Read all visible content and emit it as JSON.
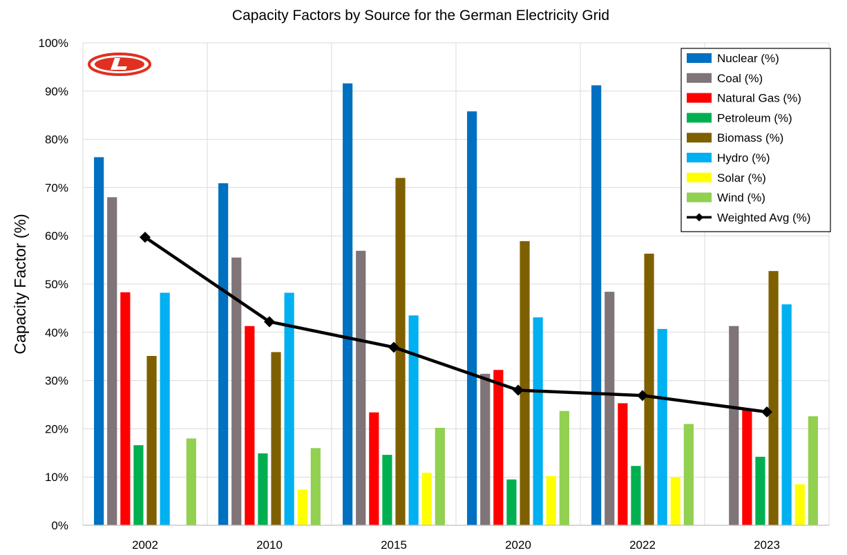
{
  "chart_data": {
    "type": "bar",
    "title": "Capacity Factors by Source for the German Electricity Grid",
    "xlabel": "",
    "ylabel": "Capacity Factor (%)",
    "ylim": [
      0,
      100
    ],
    "y_ticks": [
      "0%",
      "10%",
      "20%",
      "30%",
      "40%",
      "50%",
      "60%",
      "70%",
      "80%",
      "90%",
      "100%"
    ],
    "grid": "horizontal and vertical",
    "legend_position": "top-right",
    "categories": [
      "2002",
      "2010",
      "2015",
      "2020",
      "2022",
      "2023"
    ],
    "series": [
      {
        "name": "Nuclear (%)",
        "color": "#0070C0",
        "values": [
          76.3,
          70.9,
          91.6,
          85.8,
          91.2,
          null
        ]
      },
      {
        "name": "Coal (%)",
        "color": "#7F7478",
        "values": [
          68.0,
          55.5,
          56.9,
          31.4,
          48.4,
          41.3
        ]
      },
      {
        "name": "Natural Gas (%)",
        "color": "#FF0000",
        "values": [
          48.3,
          41.3,
          23.4,
          32.2,
          25.3,
          23.9
        ]
      },
      {
        "name": "Petroleum (%)",
        "color": "#00B050",
        "values": [
          16.6,
          14.9,
          14.6,
          9.5,
          12.3,
          14.2
        ]
      },
      {
        "name": "Biomass (%)",
        "color": "#7F6000",
        "values": [
          35.1,
          35.9,
          72.0,
          58.9,
          56.3,
          52.7
        ]
      },
      {
        "name": "Hydro (%)",
        "color": "#00B0F0",
        "values": [
          48.2,
          48.2,
          43.5,
          43.1,
          40.7,
          45.8
        ]
      },
      {
        "name": "Solar (%)",
        "color": "#FFFF00",
        "values": [
          null,
          7.4,
          10.9,
          10.2,
          10.0,
          8.5
        ]
      },
      {
        "name": "Wind (%)",
        "color": "#92D050",
        "values": [
          18.0,
          16.0,
          20.2,
          23.7,
          21.0,
          22.6
        ]
      }
    ],
    "line_series": {
      "name": "Weighted Avg (%)",
      "color": "#000000",
      "marker": "diamond",
      "values": [
        59.7,
        42.2,
        36.9,
        28.0,
        26.9,
        23.5
      ]
    }
  },
  "logo": {
    "letter": "L",
    "color": "#E03020"
  }
}
